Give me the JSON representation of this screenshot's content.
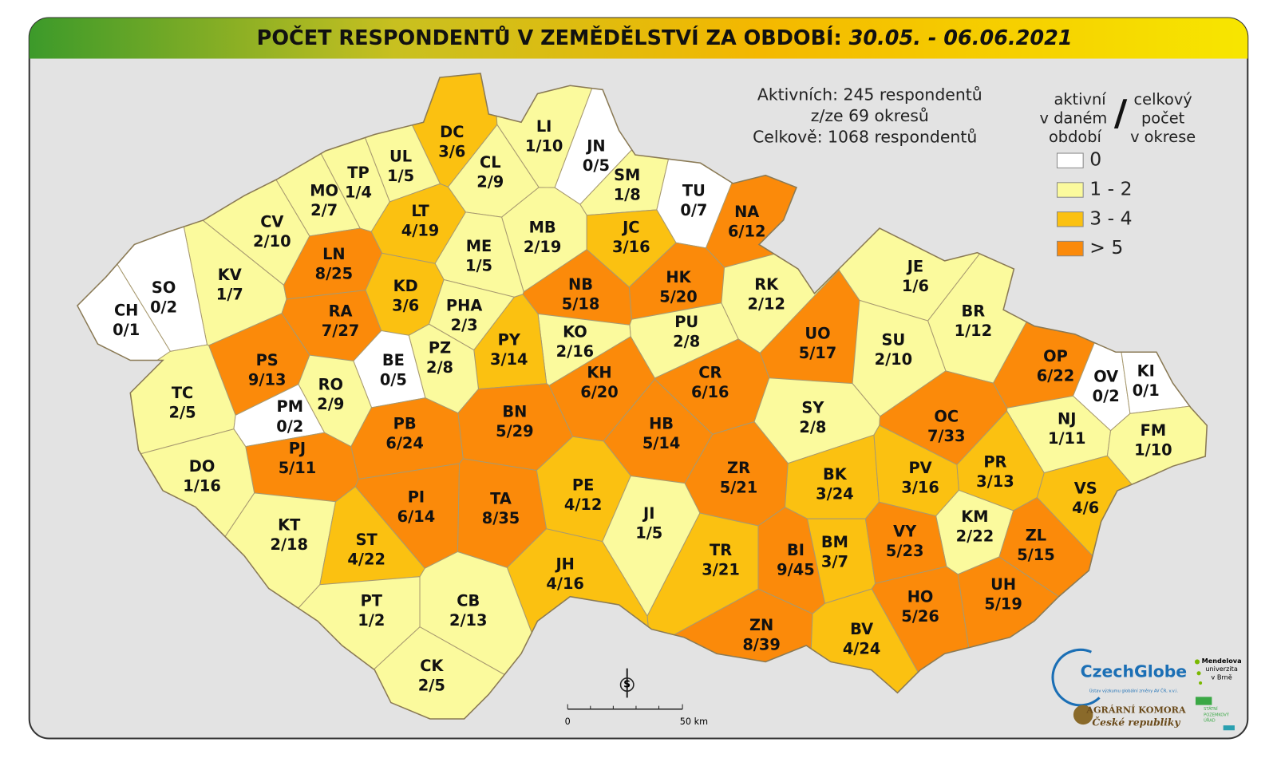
{
  "header": {
    "title": "POČET RESPONDENTŮ V ZEMĚDĚLSTVÍ ZA OBDOBÍ:",
    "period": "30.05. - 06.06.2021"
  },
  "stats": [
    "Aktivních: 245 respondentů",
    "z/ze 69 okresů",
    "Celkově: 1068 respondentů"
  ],
  "legend": {
    "left": [
      "aktivní",
      "v daném",
      "období"
    ],
    "separator": "/",
    "right": [
      "celkový",
      "počet",
      "v okrese"
    ],
    "items": [
      {
        "label": "0",
        "color": "#ffffff"
      },
      {
        "label": "1 - 2",
        "color": "#fbfa9d"
      },
      {
        "label": "3 - 4",
        "color": "#fbc111"
      },
      {
        "label": "> 5",
        "color": "#fb8a0a"
      }
    ]
  },
  "districts": [
    {
      "code": "DC",
      "label": "3/6",
      "class": 2
    },
    {
      "code": "LI",
      "label": "1/10",
      "class": 1
    },
    {
      "code": "JN",
      "label": "0/5",
      "class": 0
    },
    {
      "code": "UL",
      "label": "1/5",
      "class": 1
    },
    {
      "code": "TP",
      "label": "1/4",
      "class": 1
    },
    {
      "code": "MO",
      "label": "2/7",
      "class": 1
    },
    {
      "code": "CL",
      "label": "2/9",
      "class": 1
    },
    {
      "code": "SM",
      "label": "1/8",
      "class": 1
    },
    {
      "code": "TU",
      "label": "0/7",
      "class": 0
    },
    {
      "code": "NA",
      "label": "6/12",
      "class": 3
    },
    {
      "code": "CV",
      "label": "2/10",
      "class": 1
    },
    {
      "code": "LT",
      "label": "4/19",
      "class": 2
    },
    {
      "code": "MB",
      "label": "2/19",
      "class": 1
    },
    {
      "code": "JC",
      "label": "3/16",
      "class": 2
    },
    {
      "code": "KV",
      "label": "1/7",
      "class": 1
    },
    {
      "code": "LN",
      "label": "8/25",
      "class": 3
    },
    {
      "code": "ME",
      "label": "1/5",
      "class": 1
    },
    {
      "code": "HK",
      "label": "5/20",
      "class": 3
    },
    {
      "code": "NB",
      "label": "5/18",
      "class": 3
    },
    {
      "code": "RK",
      "label": "2/12",
      "class": 1
    },
    {
      "code": "SO",
      "label": "0/2",
      "class": 0
    },
    {
      "code": "CH",
      "label": "0/1",
      "class": 0
    },
    {
      "code": "KD",
      "label": "3/6",
      "class": 2
    },
    {
      "code": "PHA",
      "label": "2/3",
      "class": 1
    },
    {
      "code": "RA",
      "label": "7/27",
      "class": 3
    },
    {
      "code": "JE",
      "label": "1/6",
      "class": 1
    },
    {
      "code": "BR",
      "label": "1/12",
      "class": 1
    },
    {
      "code": "UO",
      "label": "5/17",
      "class": 3
    },
    {
      "code": "SU",
      "label": "2/10",
      "class": 1
    },
    {
      "code": "OP",
      "label": "6/22",
      "class": 3
    },
    {
      "code": "PU",
      "label": "2/8",
      "class": 1
    },
    {
      "code": "KO",
      "label": "2/16",
      "class": 1
    },
    {
      "code": "PY",
      "label": "3/14",
      "class": 2
    },
    {
      "code": "PZ",
      "label": "2/8",
      "class": 1
    },
    {
      "code": "BE",
      "label": "0/5",
      "class": 0
    },
    {
      "code": "PS",
      "label": "9/13",
      "class": 3
    },
    {
      "code": "KH",
      "label": "6/20",
      "class": 3
    },
    {
      "code": "CR",
      "label": "6/16",
      "class": 3
    },
    {
      "code": "RO",
      "label": "2/9",
      "class": 1
    },
    {
      "code": "OV",
      "label": "0/2",
      "class": 0
    },
    {
      "code": "KI",
      "label": "0/1",
      "class": 0
    },
    {
      "code": "TC",
      "label": "2/5",
      "class": 1
    },
    {
      "code": "SY",
      "label": "2/8",
      "class": 1
    },
    {
      "code": "OC",
      "label": "7/33",
      "class": 3
    },
    {
      "code": "BN",
      "label": "5/29",
      "class": 3
    },
    {
      "code": "PB",
      "label": "6/24",
      "class": 3
    },
    {
      "code": "HB",
      "label": "5/14",
      "class": 3
    },
    {
      "code": "NJ",
      "label": "1/11",
      "class": 1
    },
    {
      "code": "FM",
      "label": "1/10",
      "class": 1
    },
    {
      "code": "PM",
      "label": "0/2",
      "class": 0
    },
    {
      "code": "PJ",
      "label": "5/11",
      "class": 3
    },
    {
      "code": "DO",
      "label": "1/16",
      "class": 1
    },
    {
      "code": "ZR",
      "label": "5/21",
      "class": 3
    },
    {
      "code": "BK",
      "label": "3/24",
      "class": 2
    },
    {
      "code": "PV",
      "label": "3/16",
      "class": 2
    },
    {
      "code": "PR",
      "label": "3/13",
      "class": 2
    },
    {
      "code": "VS",
      "label": "4/6",
      "class": 2
    },
    {
      "code": "PE",
      "label": "4/12",
      "class": 2
    },
    {
      "code": "PI",
      "label": "6/14",
      "class": 3
    },
    {
      "code": "TA",
      "label": "8/35",
      "class": 3
    },
    {
      "code": "JI",
      "label": "1/5",
      "class": 1
    },
    {
      "code": "KM",
      "label": "2/22",
      "class": 1
    },
    {
      "code": "KT",
      "label": "2/18",
      "class": 1
    },
    {
      "code": "ST",
      "label": "4/22",
      "class": 2
    },
    {
      "code": "ZL",
      "label": "5/15",
      "class": 3
    },
    {
      "code": "TR",
      "label": "3/21",
      "class": 2
    },
    {
      "code": "BI",
      "label": "9/45",
      "class": 3
    },
    {
      "code": "BM",
      "label": "3/7",
      "class": 2
    },
    {
      "code": "VY",
      "label": "5/23",
      "class": 3
    },
    {
      "code": "JH",
      "label": "4/16",
      "class": 2
    },
    {
      "code": "HO",
      "label": "5/26",
      "class": 3
    },
    {
      "code": "UH",
      "label": "5/19",
      "class": 3
    },
    {
      "code": "PT",
      "label": "1/2",
      "class": 1
    },
    {
      "code": "CB",
      "label": "2/13",
      "class": 1
    },
    {
      "code": "ZN",
      "label": "8/39",
      "class": 3
    },
    {
      "code": "BV",
      "label": "4/24",
      "class": 2
    },
    {
      "code": "CK",
      "label": "2/5",
      "class": 1
    }
  ],
  "scale": {
    "start": "0",
    "end": "50 km"
  },
  "north": "S",
  "logos": {
    "czechglobe": "CzechGlobe",
    "czechglobe_sub": "Ústav výzkumu globální změny AV ČR, v.v.i.",
    "mendelu": [
      "Mendelova",
      "univerzita",
      "v Brně"
    ],
    "agrarni": [
      "AGRÁRNÍ KOMORA",
      "České republiky"
    ],
    "spu": [
      "STÁTNÍ",
      "POZEMKOVÝ",
      "ÚŘAD"
    ]
  }
}
